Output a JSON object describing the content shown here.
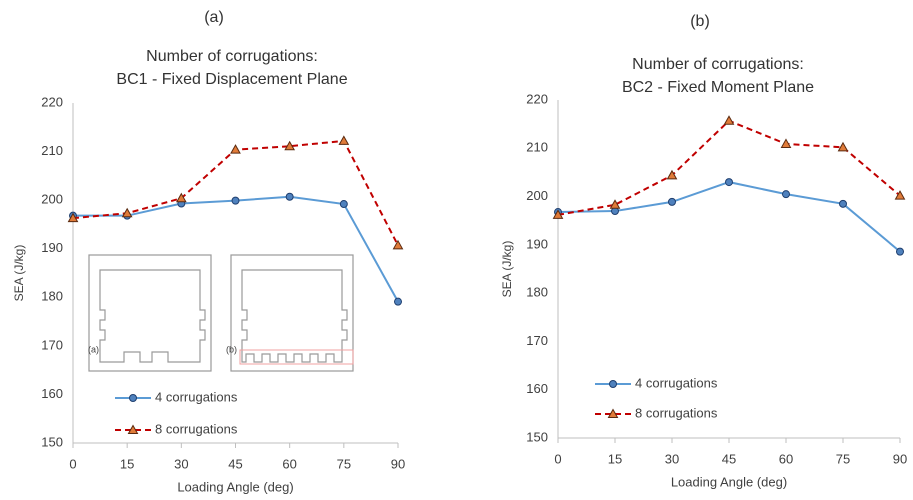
{
  "chart_data": [
    {
      "type": "line",
      "panel_label": "(a)",
      "title": [
        "Number of corrugations:",
        "BC1 - Fixed Displacement Plane"
      ],
      "x_label": "Loading Angle (deg)",
      "y_label": "SEA (J/kg)",
      "x": [
        0,
        15,
        30,
        45,
        60,
        75,
        90
      ],
      "xlim": [
        0,
        90
      ],
      "xticks": [
        0,
        15,
        30,
        45,
        60,
        75,
        90
      ],
      "ylim": [
        150,
        220
      ],
      "yticks": [
        150,
        160,
        170,
        180,
        190,
        200,
        210,
        220
      ],
      "grid": false,
      "inset_labels": [
        "(a)",
        "(b)"
      ],
      "series": [
        {
          "name": "4 corrugations",
          "color": "#5b9bd5",
          "marker": "circle",
          "dashed": false,
          "values": [
            196.8,
            196.8,
            199.3,
            199.9,
            200.7,
            199.2,
            179.1
          ]
        },
        {
          "name": "8 corrugations",
          "color": "#c00000",
          "marker": "triangle",
          "dashed": true,
          "values": [
            196.3,
            197.3,
            200.4,
            210.4,
            211.1,
            212.2,
            190.7
          ]
        }
      ]
    },
    {
      "type": "line",
      "panel_label": "(b)",
      "title": [
        "Number of corrugations:",
        "BC2 - Fixed Moment Plane"
      ],
      "x_label": "Loading Angle (deg)",
      "y_label": "SEA (J/kg)",
      "x": [
        0,
        15,
        30,
        45,
        60,
        75,
        90
      ],
      "xlim": [
        0,
        90
      ],
      "xticks": [
        0,
        15,
        30,
        45,
        60,
        75,
        90
      ],
      "ylim": [
        150,
        220
      ],
      "yticks": [
        150,
        160,
        170,
        180,
        190,
        200,
        210,
        220
      ],
      "grid": false,
      "series": [
        {
          "name": "4 corrugations",
          "color": "#5b9bd5",
          "marker": "circle",
          "dashed": false,
          "values": [
            196.8,
            197.0,
            198.9,
            203.0,
            200.5,
            198.5,
            188.6
          ]
        },
        {
          "name": "8 corrugations",
          "color": "#c00000",
          "marker": "triangle",
          "dashed": true,
          "values": [
            196.2,
            198.3,
            204.4,
            215.7,
            210.9,
            210.2,
            200.2
          ]
        }
      ]
    }
  ]
}
